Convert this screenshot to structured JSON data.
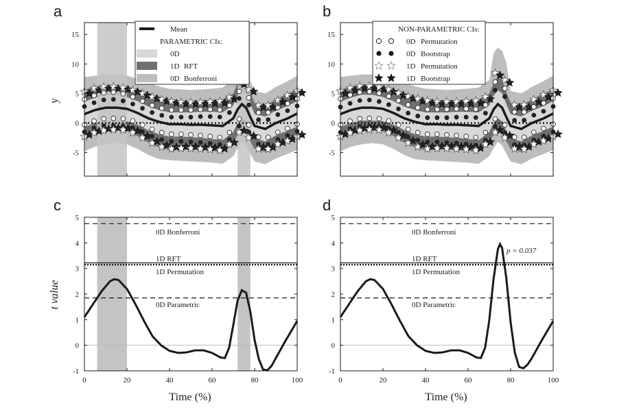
{
  "colors": {
    "mean": "#1a1a1a",
    "band_0d": "#d8d8d8",
    "band_rft": "#707070",
    "band_bonferroni": "#bdbdbd",
    "suprathreshold": "#c4c4c4",
    "marker_white": "#ffffff",
    "marker_black": "#222222"
  },
  "chart_data": [
    {
      "panel": "a",
      "type": "line",
      "xlabel": "",
      "ylabel": "y",
      "xlim": [
        0,
        100
      ],
      "ylim": [
        -9,
        17
      ],
      "yticks": [
        -5,
        0,
        5,
        10,
        15
      ],
      "suprathreshold_regions": [
        [
          6,
          20
        ],
        [
          72,
          78
        ]
      ],
      "legend": {
        "placement": "top-center",
        "mean": "Mean",
        "title": "PARAMETRIC CIs:",
        "entries": [
          {
            "marker": "0D",
            "label": "",
            "swatch": "band_0d"
          },
          {
            "marker": "1D",
            "label": "RFT",
            "swatch": "band_rft"
          },
          {
            "marker": "0D",
            "label": "Bonferroni",
            "swatch": "band_bonferroni"
          }
        ]
      },
      "series": [
        {
          "name": "Mean",
          "x": [
            0,
            5,
            10,
            15,
            20,
            25,
            30,
            35,
            40,
            45,
            50,
            55,
            60,
            65,
            70,
            72,
            74,
            76,
            78,
            80,
            85,
            90,
            95,
            100
          ],
          "values": [
            1.5,
            2.2,
            2.6,
            2.6,
            2.4,
            1.7,
            0.8,
            0.2,
            -0.2,
            -0.2,
            -0.3,
            -0.3,
            -0.4,
            -0.5,
            0.8,
            2.3,
            3.2,
            2.6,
            1.0,
            -0.5,
            -1.0,
            0.0,
            0.7,
            1.6
          ]
        },
        {
          "name": "0D",
          "x": [
            0,
            5,
            10,
            15,
            20,
            25,
            30,
            35,
            40,
            45,
            50,
            55,
            60,
            65,
            70,
            72,
            74,
            76,
            78,
            80,
            85,
            90,
            95,
            100
          ],
          "upper": [
            3.6,
            4.3,
            4.8,
            4.8,
            4.4,
            3.7,
            2.8,
            2.2,
            1.8,
            1.8,
            1.8,
            1.9,
            1.9,
            1.8,
            3.0,
            4.6,
            5.6,
            5.0,
            3.2,
            1.5,
            1.1,
            2.1,
            2.8,
            3.7
          ],
          "lower": [
            -0.7,
            0.0,
            0.4,
            0.4,
            0.3,
            -0.3,
            -1.2,
            -1.9,
            -2.3,
            -2.3,
            -2.4,
            -2.5,
            -2.7,
            -2.9,
            -1.5,
            0.0,
            0.8,
            0.3,
            -1.3,
            -2.6,
            -3.1,
            -2.1,
            -1.4,
            -0.6
          ]
        },
        {
          "name": "RFT",
          "x": [
            0,
            5,
            10,
            15,
            20,
            25,
            30,
            35,
            40,
            45,
            50,
            55,
            60,
            65,
            70,
            72,
            74,
            76,
            78,
            80,
            85,
            90,
            95,
            100
          ],
          "upper": [
            5.6,
            6.2,
            6.5,
            6.4,
            6.2,
            5.6,
            4.9,
            4.4,
            4.0,
            3.8,
            3.8,
            3.8,
            3.9,
            4.0,
            5.0,
            6.8,
            7.8,
            7.2,
            5.2,
            3.4,
            3.0,
            4.0,
            4.9,
            5.7
          ],
          "lower": [
            -2.5,
            -1.8,
            -1.4,
            -1.3,
            -1.4,
            -2.2,
            -3.3,
            -4.1,
            -4.6,
            -4.5,
            -4.5,
            -4.6,
            -4.7,
            -4.9,
            -3.2,
            -2.0,
            -1.4,
            -2.0,
            -3.1,
            -4.4,
            -4.9,
            -3.9,
            -3.3,
            -2.5
          ]
        },
        {
          "name": "Bonferroni",
          "x": [
            0,
            5,
            10,
            15,
            20,
            25,
            30,
            35,
            40,
            45,
            50,
            55,
            60,
            65,
            70,
            72,
            74,
            76,
            78,
            80,
            85,
            90,
            95,
            100
          ],
          "upper": [
            7.8,
            8.0,
            8.2,
            8.2,
            8.0,
            7.5,
            6.8,
            6.2,
            5.8,
            5.7,
            5.6,
            5.7,
            5.8,
            6.0,
            7.3,
            8.8,
            9.8,
            9.2,
            7.2,
            5.4,
            5.0,
            6.1,
            7.0,
            8.0
          ],
          "lower": [
            -4.8,
            -4.0,
            -3.6,
            -3.4,
            -3.6,
            -4.4,
            -5.4,
            -6.1,
            -6.3,
            -6.4,
            -6.5,
            -6.6,
            -6.7,
            -6.9,
            -5.6,
            -4.2,
            -3.2,
            -3.8,
            -5.2,
            -6.5,
            -7.0,
            -6.0,
            -5.3,
            -4.6
          ]
        }
      ]
    },
    {
      "panel": "b",
      "type": "line",
      "xlabel": "",
      "ylabel": "",
      "xlim": [
        0,
        100
      ],
      "ylim": [
        -9,
        17
      ],
      "yticks": [
        -5,
        0,
        5,
        10,
        15
      ],
      "suprathreshold_regions": [],
      "legend": {
        "placement": "top-center",
        "title": "NON-PARAMETRIC CIs:",
        "entries": [
          {
            "marker": "0D",
            "label": "Permutation",
            "symbol": "open-circle"
          },
          {
            "marker": "0D",
            "label": "Bootstrap",
            "symbol": "filled-circle"
          },
          {
            "marker": "1D",
            "label": "Permutation",
            "symbol": "open-star"
          },
          {
            "marker": "1D",
            "label": "Bootstrap",
            "symbol": "filled-star"
          }
        ]
      }
    },
    {
      "panel": "c",
      "type": "line",
      "xlabel": "Time (%)",
      "ylabel": "t  value",
      "xlim": [
        0,
        100
      ],
      "ylim": [
        -1,
        5
      ],
      "xticks": [
        0,
        20,
        40,
        60,
        80,
        100
      ],
      "yticks": [
        -1,
        0,
        1,
        2,
        3,
        4,
        5
      ],
      "suprathreshold_regions": [
        [
          6,
          20
        ],
        [
          72,
          78
        ]
      ],
      "thresholds": [
        {
          "label": "0D Bonferroni",
          "value": 4.75,
          "style": "dashed"
        },
        {
          "label": "1D RFT",
          "value": 3.22,
          "style": "solid"
        },
        {
          "label": "1D Permutation",
          "value": 3.15,
          "style": "dotted"
        },
        {
          "label": "0D Parametric",
          "value": 1.85,
          "style": "dashed"
        }
      ],
      "series": [
        {
          "name": "t",
          "x": [
            0,
            4,
            8,
            12,
            14,
            16,
            20,
            24,
            28,
            32,
            36,
            40,
            44,
            48,
            52,
            56,
            60,
            64,
            66,
            68,
            70,
            72,
            74,
            76,
            78,
            80,
            82,
            84,
            86,
            88,
            90,
            94,
            100
          ],
          "values": [
            1.1,
            1.6,
            2.1,
            2.5,
            2.58,
            2.55,
            2.2,
            1.6,
            0.95,
            0.35,
            0.0,
            -0.22,
            -0.3,
            -0.28,
            -0.2,
            -0.2,
            -0.3,
            -0.48,
            -0.5,
            -0.1,
            0.8,
            1.75,
            2.15,
            2.05,
            1.3,
            0.2,
            -0.55,
            -0.95,
            -0.98,
            -0.8,
            -0.5,
            0.1,
            0.95
          ]
        }
      ]
    },
    {
      "panel": "d",
      "type": "line",
      "xlabel": "Time (%)",
      "ylabel": "",
      "xlim": [
        0,
        100
      ],
      "ylim": [
        -1,
        5
      ],
      "xticks": [
        0,
        20,
        40,
        60,
        80,
        100
      ],
      "yticks": [
        -1,
        0,
        1,
        2,
        3,
        4,
        5
      ],
      "suprathreshold_regions": [],
      "annotation": "p = 0.037",
      "thresholds": [
        {
          "label": "0D Bonferroni",
          "value": 4.75,
          "style": "dashed"
        },
        {
          "label": "1D RFT",
          "value": 3.22,
          "style": "solid"
        },
        {
          "label": "1D Permutation",
          "value": 3.15,
          "style": "dotted"
        },
        {
          "label": "0D Parametric",
          "value": 1.85,
          "style": "dashed"
        }
      ],
      "series": [
        {
          "name": "t",
          "x": [
            0,
            4,
            8,
            12,
            14,
            16,
            20,
            24,
            28,
            32,
            36,
            40,
            44,
            48,
            52,
            56,
            60,
            64,
            66,
            68,
            70,
            72,
            74,
            75,
            76,
            78,
            80,
            82,
            84,
            86,
            88,
            90,
            94,
            100
          ],
          "values": [
            1.1,
            1.6,
            2.1,
            2.5,
            2.58,
            2.55,
            2.2,
            1.6,
            0.95,
            0.35,
            0.0,
            -0.22,
            -0.3,
            -0.28,
            -0.2,
            -0.2,
            -0.3,
            -0.48,
            -0.5,
            -0.1,
            1.0,
            2.6,
            3.75,
            3.95,
            3.8,
            2.6,
            0.9,
            -0.3,
            -0.85,
            -0.9,
            -0.75,
            -0.5,
            0.1,
            0.95
          ]
        }
      ]
    }
  ],
  "panels": {
    "a": {
      "label": "a"
    },
    "b": {
      "label": "b"
    },
    "c": {
      "label": "c"
    },
    "d": {
      "label": "d"
    }
  },
  "axis_labels": {
    "y_top": "y",
    "y_bottom": "t  value",
    "x_c": "Time (%)",
    "x_d": "Time (%)"
  },
  "legend_a": {
    "mean": "Mean",
    "title": "PARAMETRIC CIs:",
    "rows": [
      {
        "tag": "0D",
        "name": ""
      },
      {
        "tag": "1D",
        "name": "RFT"
      },
      {
        "tag": "0D",
        "name": "Bonferroni"
      }
    ]
  },
  "legend_b": {
    "title": "NON-PARAMETRIC CIs:",
    "rows": [
      {
        "tag": "0D",
        "name": "Permutation"
      },
      {
        "tag": "0D",
        "name": "Bootstrap"
      },
      {
        "tag": "1D",
        "name": "Permutation"
      },
      {
        "tag": "1D",
        "name": "Bootstrap"
      }
    ]
  },
  "threshold_labels": {
    "bonferroni": "0D Bonferroni",
    "rft": "1D RFT",
    "permutation": "1D Permutation",
    "parametric": "0D Parametric"
  },
  "annotation_d": "p = 0.037"
}
